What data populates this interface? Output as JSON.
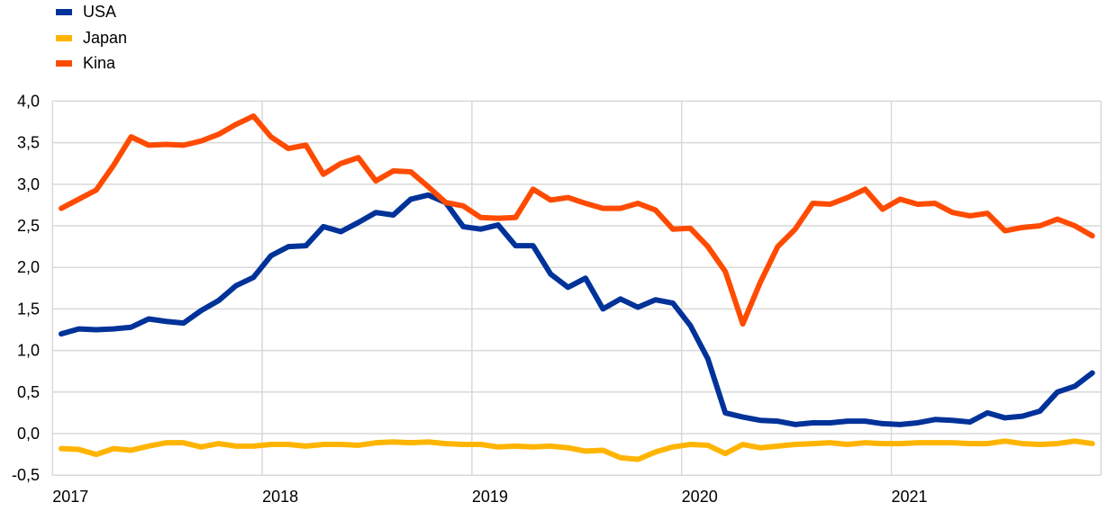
{
  "chart_data": {
    "type": "line",
    "title": "",
    "xlabel": "",
    "ylabel": "",
    "x_tick_labels": [
      "2017",
      "2018",
      "2019",
      "2020",
      "2021"
    ],
    "y_tick_labels": [
      "4,0",
      "3,5",
      "3,0",
      "2,5",
      "2,0",
      "1,5",
      "1,0",
      "0,5",
      "0,0",
      "-0,5"
    ],
    "ylim": [
      -0.5,
      4.0
    ],
    "x_frequency": "monthly, Jan 2017 - Dec 2021",
    "grid": true,
    "legend_position": "top-left",
    "series": [
      {
        "name": "USA",
        "color": "#003299",
        "values": [
          1.2,
          1.26,
          1.25,
          1.26,
          1.28,
          1.38,
          1.35,
          1.33,
          1.48,
          1.6,
          1.78,
          1.88,
          2.14,
          2.25,
          2.26,
          2.49,
          2.43,
          2.54,
          2.66,
          2.63,
          2.82,
          2.87,
          2.78,
          2.49,
          2.46,
          2.51,
          2.26,
          2.26,
          1.92,
          1.76,
          1.87,
          1.5,
          1.62,
          1.52,
          1.61,
          1.57,
          1.3,
          0.9,
          0.25,
          0.2,
          0.16,
          0.15,
          0.11,
          0.13,
          0.13,
          0.15,
          0.15,
          0.12,
          0.11,
          0.13,
          0.17,
          0.16,
          0.14,
          0.25,
          0.19,
          0.21,
          0.27,
          0.5,
          0.57,
          0.73
        ]
      },
      {
        "name": "Japan",
        "color": "#FFB400",
        "values": [
          -0.18,
          -0.19,
          -0.25,
          -0.18,
          -0.2,
          -0.15,
          -0.11,
          -0.11,
          -0.16,
          -0.12,
          -0.15,
          -0.15,
          -0.13,
          -0.13,
          -0.15,
          -0.13,
          -0.13,
          -0.14,
          -0.11,
          -0.1,
          -0.11,
          -0.1,
          -0.12,
          -0.13,
          -0.13,
          -0.16,
          -0.15,
          -0.16,
          -0.15,
          -0.17,
          -0.21,
          -0.2,
          -0.29,
          -0.31,
          -0.22,
          -0.16,
          -0.13,
          -0.14,
          -0.24,
          -0.13,
          -0.17,
          -0.15,
          -0.13,
          -0.12,
          -0.11,
          -0.13,
          -0.11,
          -0.12,
          -0.12,
          -0.11,
          -0.11,
          -0.11,
          -0.12,
          -0.12,
          -0.09,
          -0.12,
          -0.13,
          -0.12,
          -0.09,
          -0.12
        ]
      },
      {
        "name": "Kina",
        "color": "#FF4B00",
        "values": [
          2.71,
          2.82,
          2.93,
          3.23,
          3.57,
          3.47,
          3.48,
          3.47,
          3.52,
          3.6,
          3.72,
          3.82,
          3.57,
          3.43,
          3.47,
          3.12,
          3.25,
          3.32,
          3.04,
          3.16,
          3.15,
          2.97,
          2.78,
          2.74,
          2.6,
          2.59,
          2.6,
          2.94,
          2.81,
          2.84,
          2.77,
          2.71,
          2.71,
          2.77,
          2.69,
          2.46,
          2.47,
          2.25,
          1.95,
          1.32,
          1.82,
          2.25,
          2.46,
          2.77,
          2.76,
          2.84,
          2.94,
          2.7,
          2.82,
          2.76,
          2.77,
          2.66,
          2.62,
          2.65,
          2.44,
          2.48,
          2.5,
          2.58,
          2.5,
          2.38
        ]
      }
    ]
  }
}
